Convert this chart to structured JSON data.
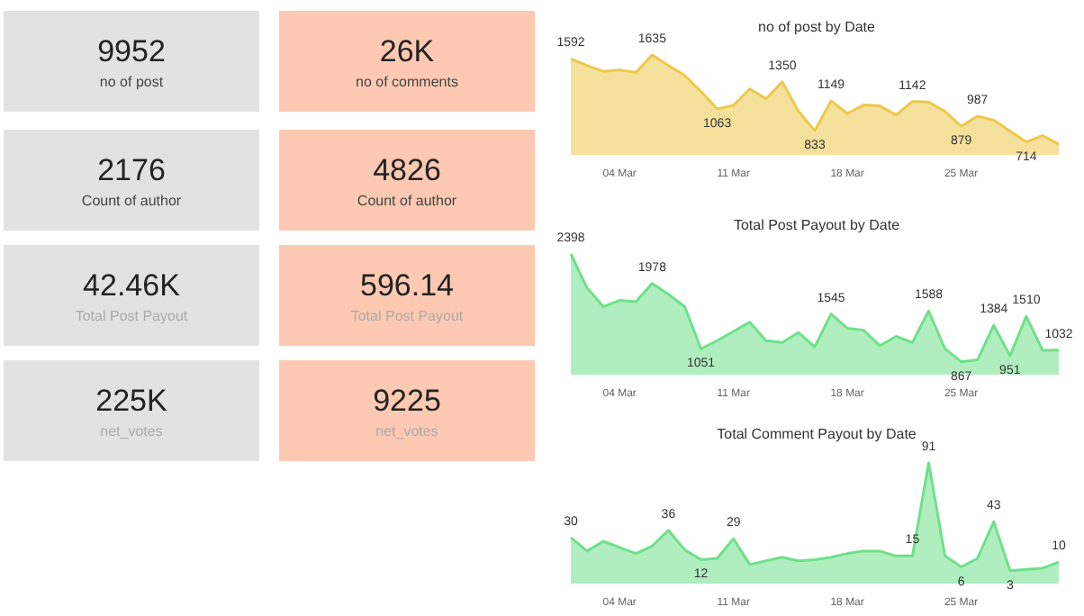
{
  "chart_data": [
    {
      "type": "other",
      "title": "9952",
      "subtitle": "no of post"
    },
    {
      "type": "other",
      "title": "26K",
      "subtitle": "no of comments"
    },
    {
      "type": "other",
      "title": "2176",
      "subtitle": "Count of author"
    },
    {
      "type": "other",
      "title": "4826",
      "subtitle": "Count of author"
    },
    {
      "type": "other",
      "title": "42.46K",
      "subtitle": "Total Post Payout"
    },
    {
      "type": "other",
      "title": "596.14",
      "subtitle": "Total Post Payout"
    },
    {
      "type": "other",
      "title": "225K",
      "subtitle": "net_votes"
    },
    {
      "type": "other",
      "title": "9225",
      "subtitle": "net_votes"
    },
    {
      "type": "area",
      "title": "no of post by Date",
      "color": "#ecc94b",
      "categories": [
        null,
        null,
        null,
        "04 Mar",
        null,
        null,
        null,
        null,
        null,
        null,
        "11 Mar",
        null,
        null,
        null,
        null,
        null,
        null,
        "18 Mar",
        null,
        null,
        null,
        null,
        null,
        null,
        "25 Mar",
        null,
        null,
        null,
        null,
        null,
        null
      ],
      "values": [
        1592,
        1523,
        1460,
        1476,
        1449,
        1635,
        1523,
        1418,
        1249,
        1063,
        1100,
        1275,
        1170,
        1350,
        1037,
        833,
        1149,
        1015,
        1105,
        1095,
        1000,
        1142,
        1137,
        1037,
        879,
        987,
        945,
        830,
        714,
        780,
        690
      ],
      "value_labels": [
        "1592",
        null,
        null,
        null,
        null,
        "1635",
        null,
        null,
        null,
        "1063",
        null,
        null,
        null,
        "1350",
        null,
        "833",
        "1149",
        null,
        null,
        null,
        null,
        "1142",
        null,
        null,
        "879",
        "987",
        null,
        null,
        "714",
        null,
        null
      ]
    },
    {
      "type": "area",
      "title": "Total Post Payout by Date",
      "color": "#6fe08a",
      "categories": [
        null,
        null,
        null,
        "04 Mar",
        null,
        null,
        null,
        null,
        null,
        null,
        "11 Mar",
        null,
        null,
        null,
        null,
        null,
        null,
        "18 Mar",
        null,
        null,
        null,
        null,
        null,
        null,
        "25 Mar",
        null,
        null,
        null,
        null,
        null,
        null
      ],
      "values": [
        2398,
        1914,
        1650,
        1738,
        1720,
        1978,
        1826,
        1650,
        1051,
        1166,
        1298,
        1430,
        1166,
        1140,
        1280,
        1078,
        1545,
        1342,
        1315,
        1095,
        1227,
        1140,
        1588,
        1051,
        867,
        893,
        1384,
        951,
        1510,
        1030,
        1032
      ],
      "value_labels": [
        "2398",
        null,
        null,
        null,
        null,
        "1978",
        null,
        null,
        "1051",
        null,
        null,
        null,
        null,
        null,
        null,
        null,
        "1545",
        null,
        null,
        null,
        null,
        null,
        "1588",
        null,
        "867",
        null,
        "1384",
        "951",
        "1510",
        null,
        "1032"
      ]
    },
    {
      "type": "area",
      "title": "Total Comment Payout by Date",
      "color": "#6fe08a",
      "categories": [
        null,
        null,
        null,
        "04 Mar",
        null,
        null,
        null,
        null,
        null,
        null,
        "11 Mar",
        null,
        null,
        null,
        null,
        null,
        null,
        "18 Mar",
        null,
        null,
        null,
        null,
        null,
        null,
        "25 Mar",
        null,
        null,
        null,
        null,
        null,
        null
      ],
      "values": [
        30,
        19,
        27,
        22,
        17,
        23,
        36,
        20,
        12,
        13,
        29,
        8,
        11,
        14,
        11,
        12,
        14,
        17,
        19,
        19,
        15,
        15,
        91,
        15,
        6,
        13,
        43,
        3,
        4,
        5,
        10
      ],
      "value_labels": [
        "30",
        null,
        null,
        null,
        null,
        null,
        "36",
        null,
        "12",
        null,
        "29",
        null,
        null,
        null,
        null,
        null,
        null,
        null,
        null,
        null,
        null,
        "15",
        "91",
        null,
        "6",
        null,
        "43",
        "3",
        null,
        null,
        "10"
      ]
    }
  ]
}
